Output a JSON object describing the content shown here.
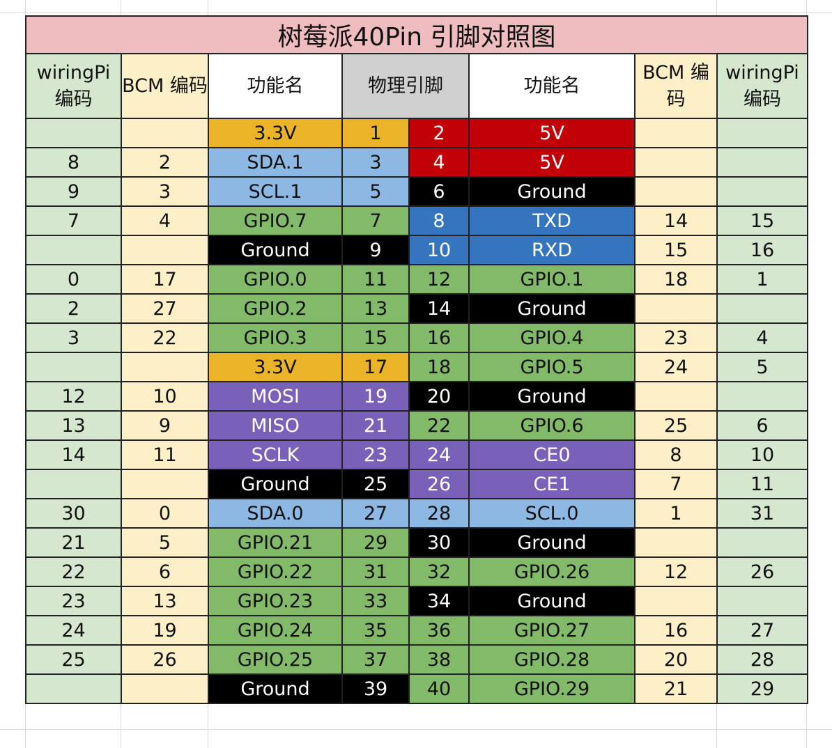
{
  "title": "树莓派40Pin 引脚对照图",
  "headers": {
    "wiringpi_left": "wiringPi 编码",
    "bcm_left": "BCM 编码",
    "func_left": "功能名",
    "physical": "物理引脚",
    "func_right": "功能名",
    "bcm_right": "BCM 编码",
    "wiringpi_right": "wiringPi 编码"
  },
  "colors": {
    "power_3v3": "#ebb327",
    "power_5v": "#c20007",
    "ground": "#000000",
    "i2c": "#8db8e3",
    "gpio": "#83ba69",
    "uart": "#3574be",
    "spi": "#7960b8",
    "wiringpi_column": "#d5e8cf",
    "bcm_column": "#fdf0c9",
    "title_bar": "#efbdc0"
  },
  "rows": [
    {
      "wp_l": "",
      "bcm_l": "",
      "name_l": "3.3V",
      "pin_l": "1",
      "type_l": "power33",
      "pin_r": "2",
      "name_r": "5V",
      "type_r": "power5",
      "bcm_r": "",
      "wp_r": ""
    },
    {
      "wp_l": "8",
      "bcm_l": "2",
      "name_l": "SDA.1",
      "pin_l": "3",
      "type_l": "i2c",
      "pin_r": "4",
      "name_r": "5V",
      "type_r": "power5",
      "bcm_r": "",
      "wp_r": ""
    },
    {
      "wp_l": "9",
      "bcm_l": "3",
      "name_l": "SCL.1",
      "pin_l": "5",
      "type_l": "i2c",
      "pin_r": "6",
      "name_r": "Ground",
      "type_r": "ground",
      "bcm_r": "",
      "wp_r": ""
    },
    {
      "wp_l": "7",
      "bcm_l": "4",
      "name_l": "GPIO.7",
      "pin_l": "7",
      "type_l": "gpio",
      "pin_r": "8",
      "name_r": "TXD",
      "type_r": "uart",
      "bcm_r": "14",
      "wp_r": "15"
    },
    {
      "wp_l": "",
      "bcm_l": "",
      "name_l": "Ground",
      "pin_l": "9",
      "type_l": "ground",
      "pin_r": "10",
      "name_r": "RXD",
      "type_r": "uart",
      "bcm_r": "15",
      "wp_r": "16"
    },
    {
      "wp_l": "0",
      "bcm_l": "17",
      "name_l": "GPIO.0",
      "pin_l": "11",
      "type_l": "gpio",
      "pin_r": "12",
      "name_r": "GPIO.1",
      "type_r": "gpio",
      "bcm_r": "18",
      "wp_r": "1"
    },
    {
      "wp_l": "2",
      "bcm_l": "27",
      "name_l": "GPIO.2",
      "pin_l": "13",
      "type_l": "gpio",
      "pin_r": "14",
      "name_r": "Ground",
      "type_r": "ground",
      "bcm_r": "",
      "wp_r": ""
    },
    {
      "wp_l": "3",
      "bcm_l": "22",
      "name_l": "GPIO.3",
      "pin_l": "15",
      "type_l": "gpio",
      "pin_r": "16",
      "name_r": "GPIO.4",
      "type_r": "gpio",
      "bcm_r": "23",
      "wp_r": "4"
    },
    {
      "wp_l": "",
      "bcm_l": "",
      "name_l": "3.3V",
      "pin_l": "17",
      "type_l": "power33",
      "pin_r": "18",
      "name_r": "GPIO.5",
      "type_r": "gpio",
      "bcm_r": "24",
      "wp_r": "5"
    },
    {
      "wp_l": "12",
      "bcm_l": "10",
      "name_l": "MOSI",
      "pin_l": "19",
      "type_l": "spi",
      "pin_r": "20",
      "name_r": "Ground",
      "type_r": "ground",
      "bcm_r": "",
      "wp_r": ""
    },
    {
      "wp_l": "13",
      "bcm_l": "9",
      "name_l": "MISO",
      "pin_l": "21",
      "type_l": "spi",
      "pin_r": "22",
      "name_r": "GPIO.6",
      "type_r": "gpio",
      "bcm_r": "25",
      "wp_r": "6"
    },
    {
      "wp_l": "14",
      "bcm_l": "11",
      "name_l": "SCLK",
      "pin_l": "23",
      "type_l": "spi",
      "pin_r": "24",
      "name_r": "CE0",
      "type_r": "spi",
      "bcm_r": "8",
      "wp_r": "10"
    },
    {
      "wp_l": "",
      "bcm_l": "",
      "name_l": "Ground",
      "pin_l": "25",
      "type_l": "ground",
      "pin_r": "26",
      "name_r": "CE1",
      "type_r": "spi",
      "bcm_r": "7",
      "wp_r": "11"
    },
    {
      "wp_l": "30",
      "bcm_l": "0",
      "name_l": "SDA.0",
      "pin_l": "27",
      "type_l": "i2c",
      "pin_r": "28",
      "name_r": "SCL.0",
      "type_r": "i2c",
      "bcm_r": "1",
      "wp_r": "31"
    },
    {
      "wp_l": "21",
      "bcm_l": "5",
      "name_l": "GPIO.21",
      "pin_l": "29",
      "type_l": "gpio",
      "pin_r": "30",
      "name_r": "Ground",
      "type_r": "ground",
      "bcm_r": "",
      "wp_r": ""
    },
    {
      "wp_l": "22",
      "bcm_l": "6",
      "name_l": "GPIO.22",
      "pin_l": "31",
      "type_l": "gpio",
      "pin_r": "32",
      "name_r": "GPIO.26",
      "type_r": "gpio",
      "bcm_r": "12",
      "wp_r": "26"
    },
    {
      "wp_l": "23",
      "bcm_l": "13",
      "name_l": "GPIO.23",
      "pin_l": "33",
      "type_l": "gpio",
      "pin_r": "34",
      "name_r": "Ground",
      "type_r": "ground",
      "bcm_r": "",
      "wp_r": ""
    },
    {
      "wp_l": "24",
      "bcm_l": "19",
      "name_l": "GPIO.24",
      "pin_l": "35",
      "type_l": "gpio",
      "pin_r": "36",
      "name_r": "GPIO.27",
      "type_r": "gpio",
      "bcm_r": "16",
      "wp_r": "27"
    },
    {
      "wp_l": "25",
      "bcm_l": "26",
      "name_l": "GPIO.25",
      "pin_l": "37",
      "type_l": "gpio",
      "pin_r": "38",
      "name_r": "GPIO.28",
      "type_r": "gpio",
      "bcm_r": "20",
      "wp_r": "28"
    },
    {
      "wp_l": "",
      "bcm_l": "",
      "name_l": "Ground",
      "pin_l": "39",
      "type_l": "ground",
      "pin_r": "40",
      "name_r": "GPIO.29",
      "type_r": "gpio",
      "bcm_r": "21",
      "wp_r": "29"
    }
  ]
}
